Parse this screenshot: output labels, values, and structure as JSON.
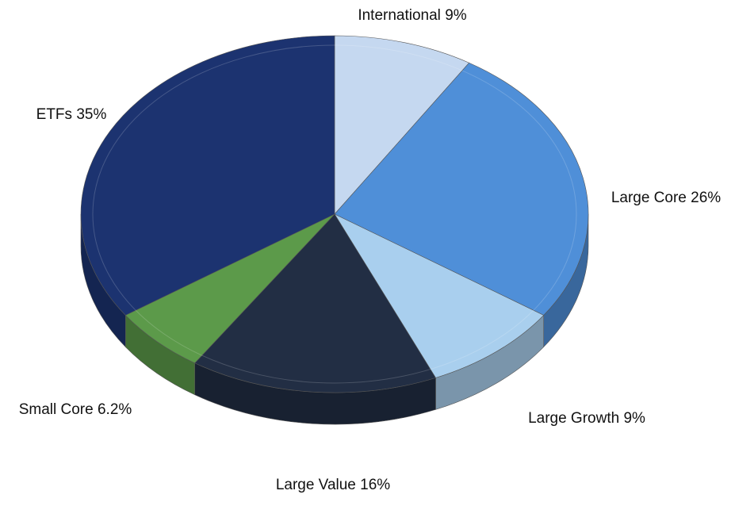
{
  "chart_data": {
    "type": "pie",
    "categories": [
      "International",
      "Large Core",
      "Large Growth",
      "Large Value",
      "Small Core",
      "ETFs"
    ],
    "values": [
      9,
      26,
      9,
      16,
      6.2,
      35
    ],
    "value_labels": [
      "9%",
      "26%",
      "9%",
      "16%",
      "6.2%",
      "35%"
    ],
    "colors": [
      "#c5d8f0",
      "#4f8fd8",
      "#a9cfee",
      "#222e44",
      "#5c9a4a",
      "#1c3370"
    ]
  }
}
